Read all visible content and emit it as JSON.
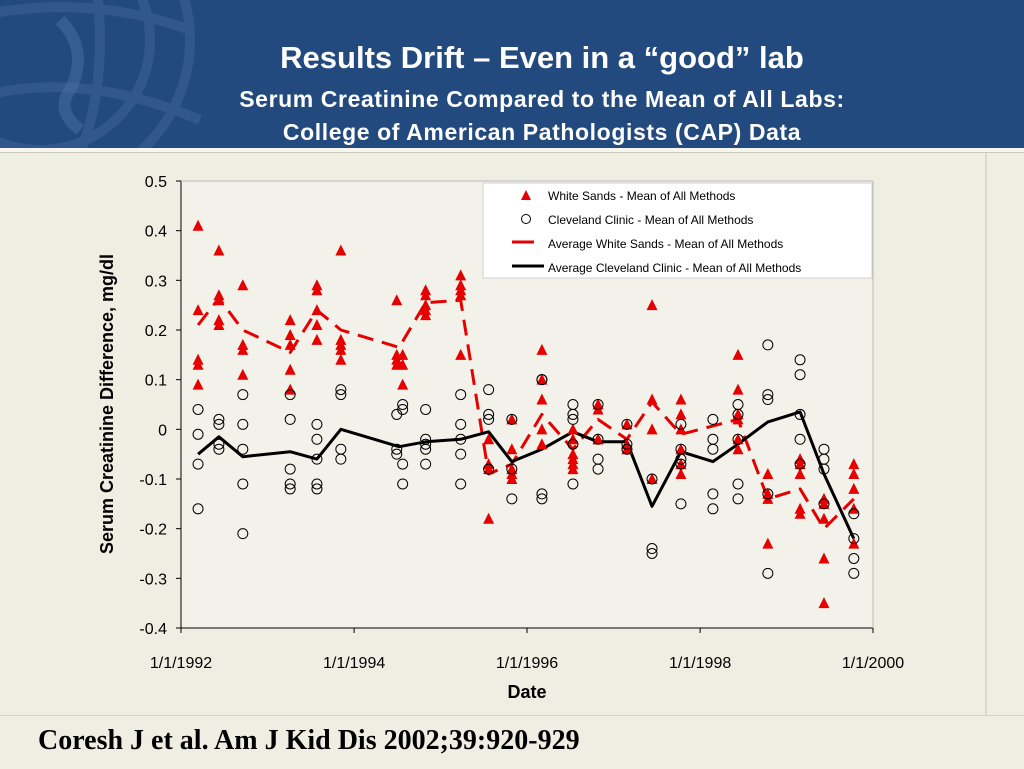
{
  "slide": {
    "title": "Results Drift – Even in a “good” lab",
    "subtitle_line1": "Serum Creatinine Compared to the Mean of All Labs:",
    "subtitle_line2": "College of American Pathologists (CAP) Data",
    "citation": "Coresh J et al. Am J Kid Dis 2002;39:920-929"
  },
  "colors": {
    "header": "#234a7e",
    "background": "#efeee3",
    "white_sands": "#e60000",
    "cleveland_clinic": "#000000"
  },
  "chart_data": {
    "type": "scatter",
    "xlabel": "Date",
    "ylabel": "Serum Creatinine Difference, mg/dl",
    "ylim": [
      -0.4,
      0.5
    ],
    "yticks": [
      "0.5",
      "0.4",
      "0.3",
      "0.2",
      "0.1",
      "0",
      "-0.1",
      "-0.2",
      "-0.3",
      "-0.4"
    ],
    "xlim": [
      "1/1/1992",
      "1/1/2000"
    ],
    "xticks": [
      "1/1/1992",
      "1/1/1994",
      "1/1/1996",
      "1/1/1998",
      "1/1/2000"
    ],
    "legend_position": "top-right",
    "grid": false,
    "series": [
      {
        "name": "White Sands - Mean of All Methods",
        "marker": "triangle",
        "color": "#e60000",
        "points": [
          {
            "date": "1992-03-13",
            "values": [
              0.41,
              0.24,
              0.14,
              0.13,
              0.09
            ]
          },
          {
            "date": "1992-06-09",
            "values": [
              0.36,
              0.27,
              0.26,
              0.22,
              0.21
            ]
          },
          {
            "date": "1992-09-18",
            "values": [
              0.29,
              0.17,
              0.16,
              0.11
            ]
          },
          {
            "date": "1993-04-06",
            "values": [
              0.22,
              0.19,
              0.17,
              0.12,
              0.08
            ]
          },
          {
            "date": "1993-07-28",
            "values": [
              0.29,
              0.28,
              0.24,
              0.21,
              0.18
            ]
          },
          {
            "date": "1993-11-06",
            "values": [
              0.36,
              0.18,
              0.17,
              0.16,
              0.14
            ]
          },
          {
            "date": "1994-06-30",
            "values": [
              0.26,
              0.15,
              0.14,
              0.13
            ]
          },
          {
            "date": "1994-07-25",
            "values": [
              0.15,
              0.13,
              0.09
            ]
          },
          {
            "date": "1994-10-30",
            "values": [
              0.28,
              0.27,
              0.25,
              0.24,
              0.23
            ]
          },
          {
            "date": "1995-03-27",
            "values": [
              0.31,
              0.29,
              0.28,
              0.27,
              0.15
            ]
          },
          {
            "date": "1995-07-23",
            "values": [
              -0.02,
              -0.07,
              -0.08,
              -0.18
            ]
          },
          {
            "date": "1995-10-29",
            "values": [
              0.02,
              -0.04,
              -0.08,
              -0.09,
              -0.1
            ]
          },
          {
            "date": "1996-03-04",
            "values": [
              0.16,
              0.1,
              0.06,
              0.0,
              -0.03
            ]
          },
          {
            "date": "1996-07-13",
            "values": [
              0.0,
              -0.02,
              -0.05,
              -0.06,
              -0.07,
              -0.08
            ]
          },
          {
            "date": "1996-10-27",
            "values": [
              0.05,
              0.04,
              -0.02,
              -0.02
            ]
          },
          {
            "date": "1997-02-26",
            "values": [
              0.01,
              -0.03,
              -0.04
            ]
          },
          {
            "date": "1997-06-12",
            "values": [
              0.25,
              0.06,
              0.0,
              -0.1
            ]
          },
          {
            "date": "1997-10-12",
            "values": [
              0.06,
              0.03,
              0.0,
              -0.04,
              -0.07,
              -0.09
            ]
          },
          {
            "date": "1998-06-10",
            "values": [
              0.15,
              0.08,
              0.03,
              0.02,
              -0.02,
              -0.04
            ]
          },
          {
            "date": "1998-10-14",
            "values": [
              -0.09,
              -0.13,
              -0.14,
              -0.23
            ]
          },
          {
            "date": "1999-02-27",
            "values": [
              -0.06,
              -0.07,
              -0.09,
              -0.16,
              -0.17
            ]
          },
          {
            "date": "1999-06-08",
            "values": [
              -0.14,
              -0.15,
              -0.18,
              -0.26,
              -0.35
            ]
          },
          {
            "date": "1999-10-12",
            "values": [
              -0.07,
              -0.09,
              -0.12,
              -0.16,
              -0.23
            ]
          }
        ]
      },
      {
        "name": "Cleveland Clinic - Mean of All Methods",
        "marker": "circle",
        "color": "#000000",
        "points": [
          {
            "date": "1992-03-13",
            "values": [
              0.04,
              -0.01,
              -0.07,
              -0.16
            ]
          },
          {
            "date": "1992-06-09",
            "values": [
              0.02,
              0.01,
              -0.03,
              -0.04
            ]
          },
          {
            "date": "1992-09-18",
            "values": [
              0.07,
              0.01,
              -0.04,
              -0.11,
              -0.21
            ]
          },
          {
            "date": "1993-04-06",
            "values": [
              0.07,
              0.02,
              -0.08,
              -0.11,
              -0.12
            ]
          },
          {
            "date": "1993-07-28",
            "values": [
              0.01,
              -0.02,
              -0.06,
              -0.11,
              -0.12
            ]
          },
          {
            "date": "1993-11-06",
            "values": [
              0.08,
              0.07,
              -0.04,
              -0.06
            ]
          },
          {
            "date": "1994-06-30",
            "values": [
              0.03,
              -0.04,
              -0.05
            ]
          },
          {
            "date": "1994-07-25",
            "values": [
              0.05,
              0.04,
              -0.07,
              -0.11
            ]
          },
          {
            "date": "1994-10-30",
            "values": [
              0.04,
              -0.02,
              -0.03,
              -0.04,
              -0.07
            ]
          },
          {
            "date": "1995-03-27",
            "values": [
              0.07,
              0.01,
              -0.02,
              -0.05,
              -0.11
            ]
          },
          {
            "date": "1995-07-23",
            "values": [
              0.08,
              0.03,
              0.02,
              -0.08
            ]
          },
          {
            "date": "1995-10-29",
            "values": [
              0.02,
              -0.08,
              -0.14
            ]
          },
          {
            "date": "1996-03-04",
            "values": [
              0.1,
              0.1,
              -0.13,
              -0.14
            ]
          },
          {
            "date": "1996-07-13",
            "values": [
              0.05,
              0.03,
              0.02,
              -0.03,
              -0.11
            ]
          },
          {
            "date": "1996-10-27",
            "values": [
              0.05,
              -0.02,
              -0.06,
              -0.08
            ]
          },
          {
            "date": "1997-02-26",
            "values": [
              0.01,
              -0.03,
              -0.04
            ]
          },
          {
            "date": "1997-06-12",
            "values": [
              -0.1,
              -0.24,
              -0.25
            ]
          },
          {
            "date": "1997-10-12",
            "values": [
              0.01,
              -0.04,
              -0.06,
              -0.07,
              -0.15
            ]
          },
          {
            "date": "1998-02-24",
            "values": [
              0.02,
              -0.02,
              -0.04,
              -0.13,
              -0.16
            ]
          },
          {
            "date": "1998-06-10",
            "values": [
              0.05,
              0.03,
              -0.02,
              -0.11,
              -0.14
            ]
          },
          {
            "date": "1998-10-14",
            "values": [
              0.17,
              0.07,
              0.06,
              -0.13,
              -0.29
            ]
          },
          {
            "date": "1999-02-27",
            "values": [
              0.14,
              0.11,
              0.03,
              -0.02,
              -0.07
            ]
          },
          {
            "date": "1999-06-08",
            "values": [
              -0.04,
              -0.06,
              -0.08,
              -0.15
            ]
          },
          {
            "date": "1999-10-12",
            "values": [
              -0.17,
              -0.22,
              -0.26,
              -0.29
            ]
          }
        ]
      },
      {
        "name": "Average White Sands - Mean of All Methods",
        "marker": "dashed-line",
        "color": "#e60000",
        "points": [
          {
            "date": "1992-03-13",
            "value": 0.21
          },
          {
            "date": "1992-06-09",
            "value": 0.264
          },
          {
            "date": "1992-09-18",
            "value": 0.2
          },
          {
            "date": "1993-04-06",
            "value": 0.155
          },
          {
            "date": "1993-07-28",
            "value": 0.24
          },
          {
            "date": "1993-11-06",
            "value": 0.2
          },
          {
            "date": "1994-07-10",
            "value": 0.165
          },
          {
            "date": "1994-10-30",
            "value": 0.255
          },
          {
            "date": "1995-03-27",
            "value": 0.26
          },
          {
            "date": "1995-07-23",
            "value": -0.09
          },
          {
            "date": "1995-10-29",
            "value": -0.07
          },
          {
            "date": "1996-03-04",
            "value": 0.03
          },
          {
            "date": "1996-07-13",
            "value": -0.04
          },
          {
            "date": "1996-10-27",
            "value": 0.02
          },
          {
            "date": "1997-02-26",
            "value": -0.02
          },
          {
            "date": "1997-06-12",
            "value": 0.055
          },
          {
            "date": "1997-10-12",
            "value": -0.01
          },
          {
            "date": "1998-06-10",
            "value": 0.02
          },
          {
            "date": "1998-10-14",
            "value": -0.14
          },
          {
            "date": "1999-02-27",
            "value": -0.12
          },
          {
            "date": "1999-06-08",
            "value": -0.2
          },
          {
            "date": "1999-10-12",
            "value": -0.14
          }
        ]
      },
      {
        "name": "Average Cleveland Clinic - Mean of All Methods",
        "marker": "solid-line",
        "color": "#000000",
        "points": [
          {
            "date": "1992-03-13",
            "value": -0.05
          },
          {
            "date": "1992-06-09",
            "value": -0.015
          },
          {
            "date": "1992-09-18",
            "value": -0.055
          },
          {
            "date": "1993-04-06",
            "value": -0.045
          },
          {
            "date": "1993-07-28",
            "value": -0.06
          },
          {
            "date": "1993-11-06",
            "value": 0.0
          },
          {
            "date": "1994-07-10",
            "value": -0.035
          },
          {
            "date": "1994-10-30",
            "value": -0.025
          },
          {
            "date": "1995-03-27",
            "value": -0.02
          },
          {
            "date": "1995-07-23",
            "value": -0.005
          },
          {
            "date": "1995-10-29",
            "value": -0.065
          },
          {
            "date": "1996-03-04",
            "value": -0.04
          },
          {
            "date": "1996-07-13",
            "value": -0.005
          },
          {
            "date": "1996-10-27",
            "value": -0.025
          },
          {
            "date": "1997-02-26",
            "value": -0.025
          },
          {
            "date": "1997-06-12",
            "value": -0.155
          },
          {
            "date": "1997-10-12",
            "value": -0.045
          },
          {
            "date": "1998-02-24",
            "value": -0.065
          },
          {
            "date": "1998-06-10",
            "value": -0.03
          },
          {
            "date": "1998-10-14",
            "value": 0.015
          },
          {
            "date": "1999-02-27",
            "value": 0.035
          },
          {
            "date": "1999-06-08",
            "value": -0.09
          },
          {
            "date": "1999-10-12",
            "value": -0.22
          }
        ]
      }
    ]
  }
}
